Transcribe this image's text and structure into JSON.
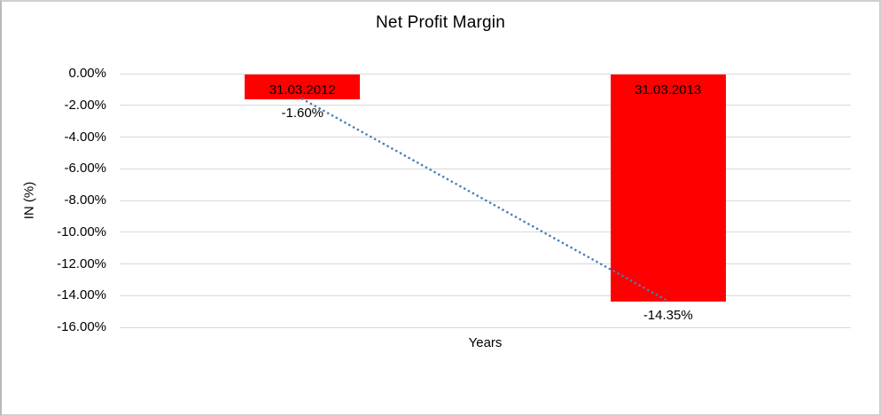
{
  "chart_data": {
    "type": "bar",
    "title": "Net Profit Margin",
    "xlabel": "Years",
    "ylabel": "IN (%)",
    "categories": [
      "31.03.2012",
      "31.03.2013"
    ],
    "values": [
      -1.6,
      -14.35
    ],
    "value_labels": [
      "-1.60%",
      "-14.35%"
    ],
    "ylim": [
      -16,
      0
    ],
    "ytick_step": 2,
    "ytick_labels": [
      "0.00%",
      "-2.00%",
      "-4.00%",
      "-6.00%",
      "-8.00%",
      "-10.00%",
      "-12.00%",
      "-14.00%",
      "-16.00%"
    ],
    "grid": true,
    "legend_position": "none",
    "bar_label_position": "inside-end",
    "value_label_position": "outside-end",
    "trendline": {
      "style": "dotted",
      "connects": [
        "31.03.2012",
        "31.03.2013"
      ]
    }
  },
  "colors": {
    "bar": "#FF0000",
    "trendline": "#4A7EBB",
    "gridline": "#D9D9D9",
    "text": "#000000",
    "frame": "#CFCFCF",
    "background": "#FFFFFF"
  }
}
